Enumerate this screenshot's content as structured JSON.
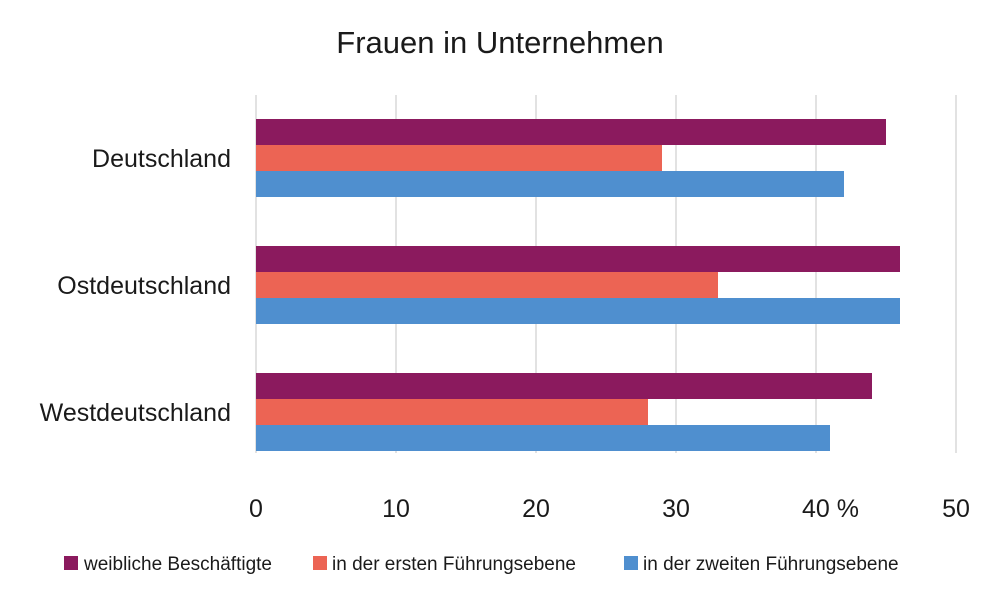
{
  "chart_data": {
    "type": "bar",
    "orientation": "horizontal",
    "title": "Frauen in Unternehmen",
    "categories": [
      "Deutschland",
      "Ostdeutschland",
      "Westdeutschland"
    ],
    "series": [
      {
        "name": "weibliche Beschäftigte",
        "color": "#8b1a5e",
        "values": [
          45,
          46,
          44
        ]
      },
      {
        "name": "in der ersten Führungsebene",
        "color": "#ec6454",
        "values": [
          29,
          33,
          28
        ]
      },
      {
        "name": "in der zweiten Führungsebene",
        "color": "#4f8fcf",
        "values": [
          42,
          46,
          41
        ]
      }
    ],
    "xlim": [
      0,
      50
    ],
    "xticks": [
      {
        "value": 0,
        "label": "0"
      },
      {
        "value": 10,
        "label": "10"
      },
      {
        "value": 20,
        "label": "20"
      },
      {
        "value": 30,
        "label": "30"
      },
      {
        "value": 40,
        "label": "40 %"
      },
      {
        "value": 50,
        "label": "50"
      }
    ],
    "grid": true,
    "legend_position": "bottom"
  }
}
